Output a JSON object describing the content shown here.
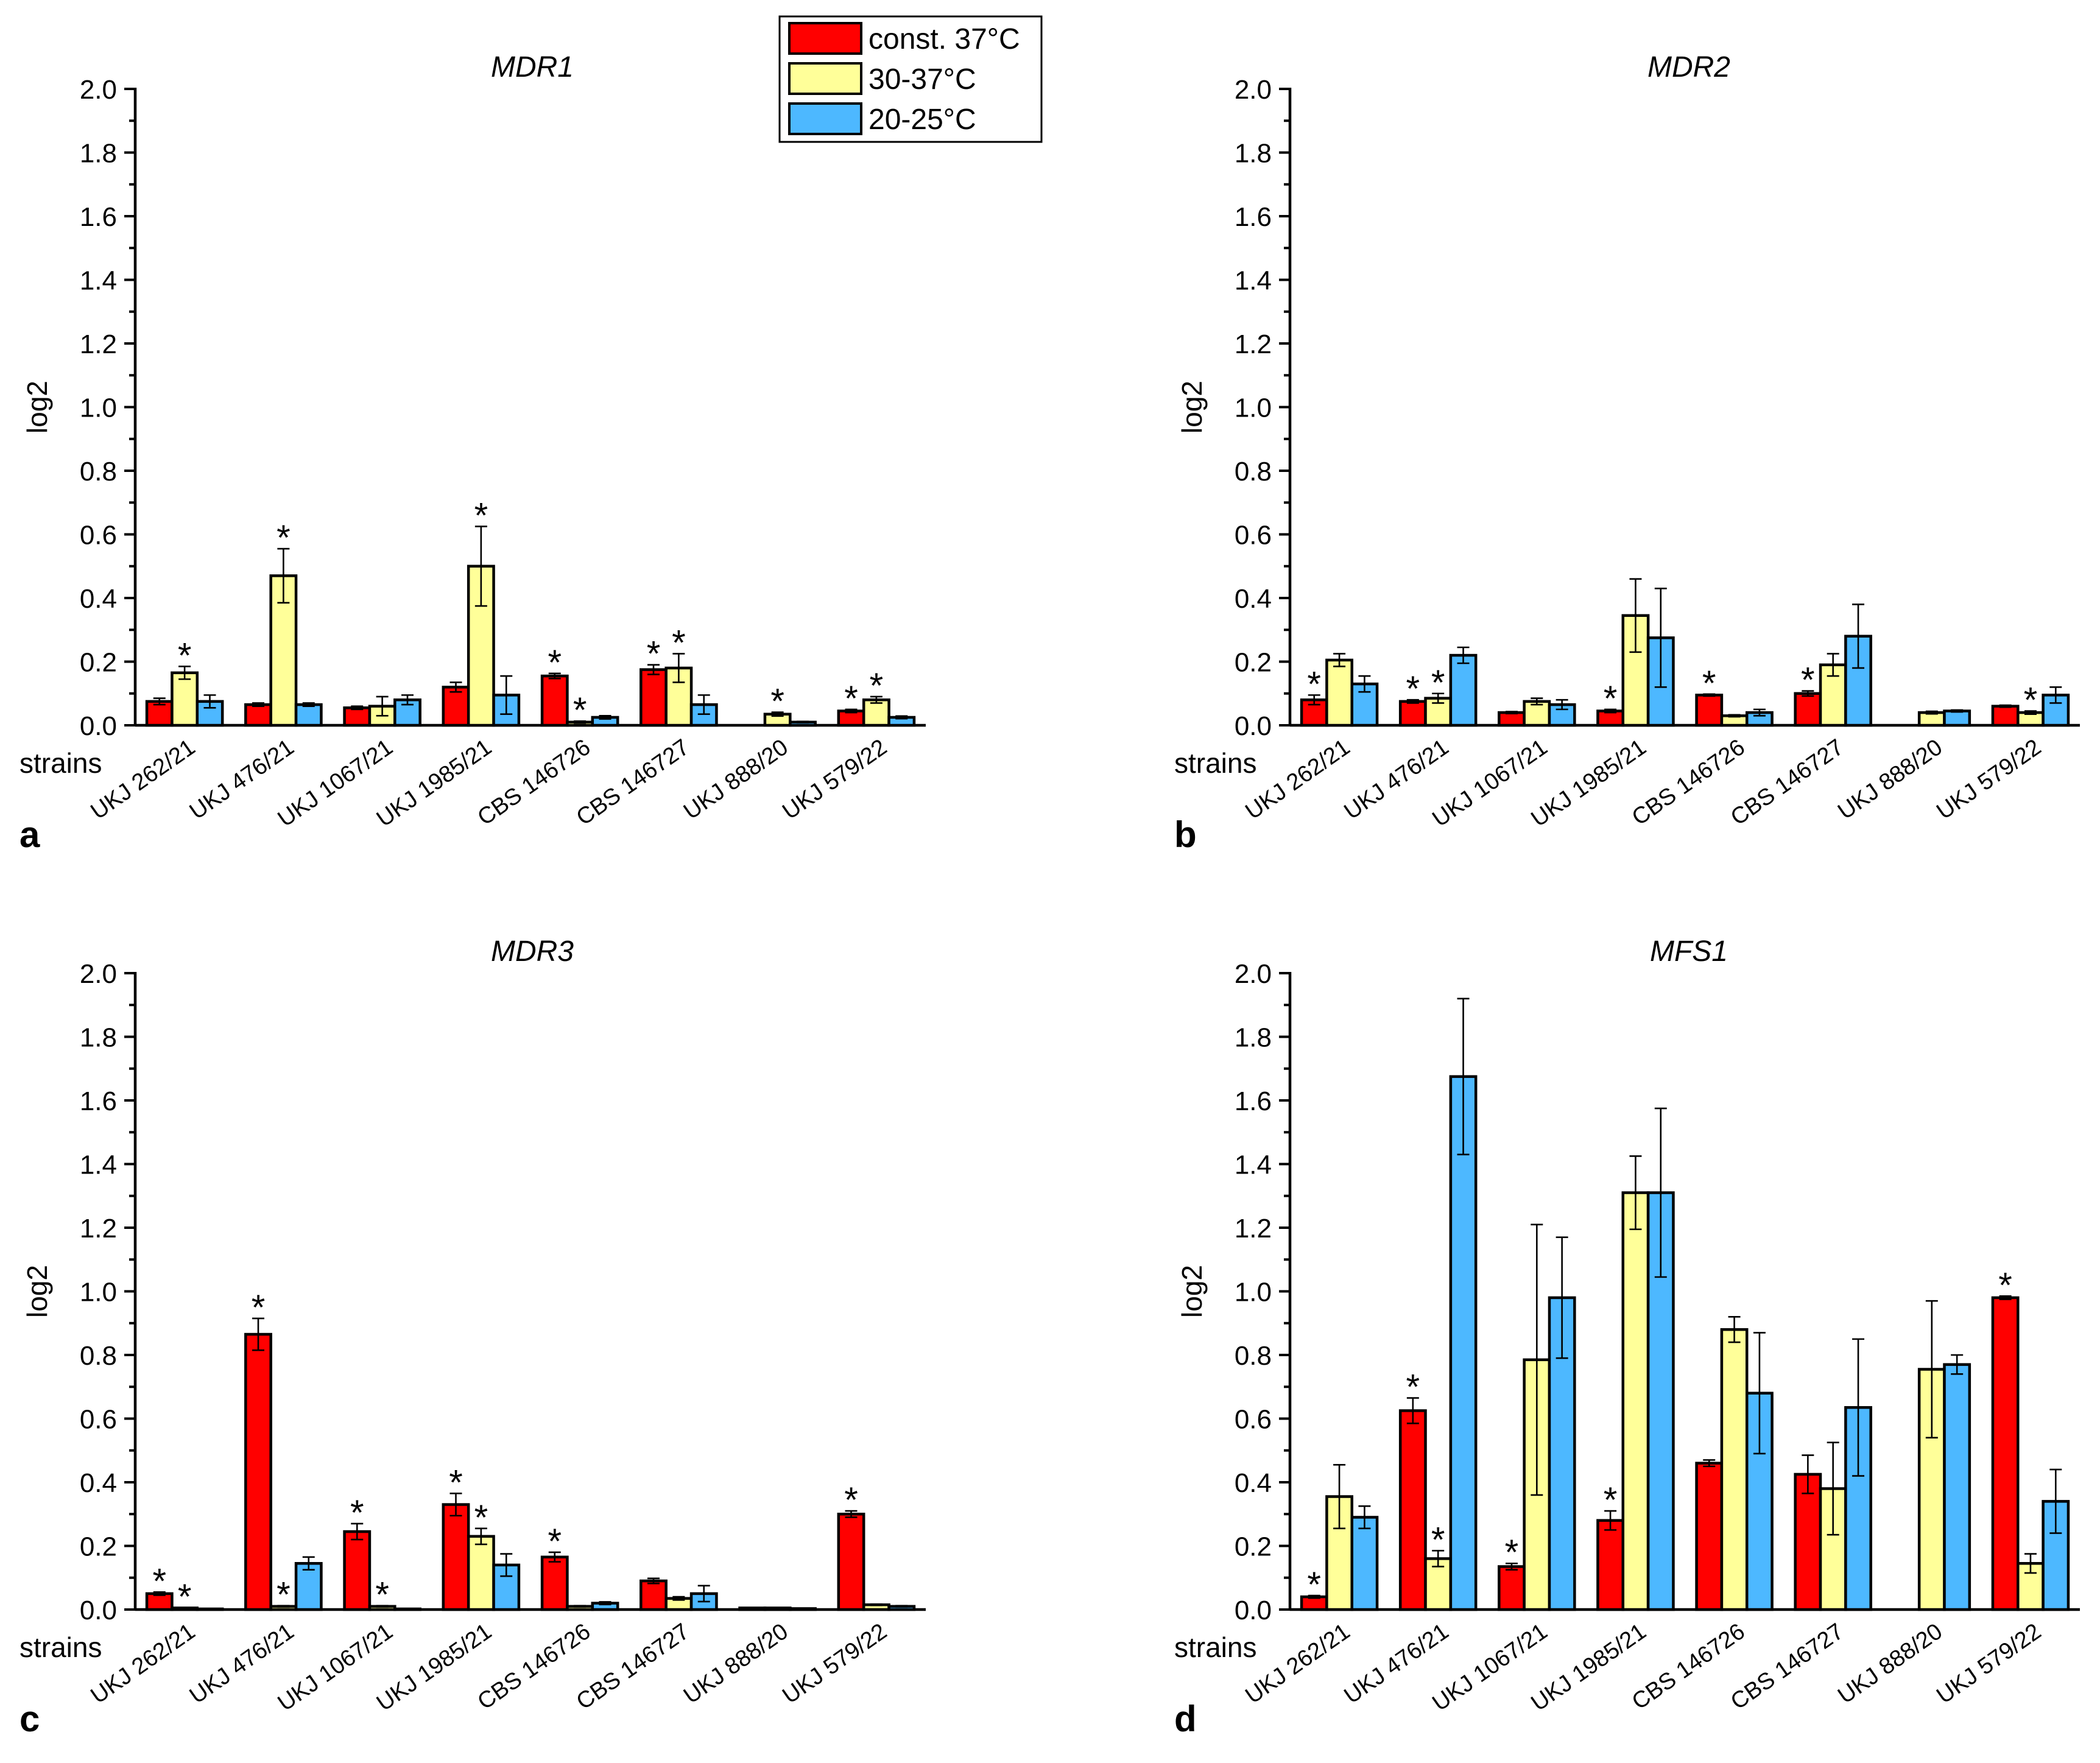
{
  "legend": {
    "items": [
      {
        "label": "const. 37°C",
        "color": "#ff0000"
      },
      {
        "label": "30-37°C",
        "color": "#ffff99"
      },
      {
        "label": "20-25°C",
        "color": "#4db8ff"
      }
    ]
  },
  "chart_data": [
    {
      "type": "bar",
      "panel": "a",
      "title": "MDR1",
      "xlabel": "strains",
      "ylabel": "log2",
      "ylim": [
        0,
        2.0
      ],
      "yticks": [
        "0.0",
        "0.2",
        "0.4",
        "0.6",
        "0.8",
        "1.0",
        "1.2",
        "1.4",
        "1.6",
        "1.8",
        "2.0"
      ],
      "categories": [
        "UKJ 262/21",
        "UKJ 476/21",
        "UKJ 1067/21",
        "UKJ 1985/21",
        "CBS 146726",
        "CBS 146727",
        "UKJ 888/20",
        "UKJ 579/22"
      ],
      "series": [
        {
          "name": "const. 37°C",
          "values": [
            0.075,
            0.065,
            0.055,
            0.12,
            0.155,
            0.175,
            0.0,
            0.045
          ],
          "errors": [
            0.01,
            0.005,
            0.005,
            0.015,
            0.008,
            0.015,
            0.0,
            0.005
          ],
          "significant": [
            false,
            false,
            false,
            false,
            true,
            true,
            false,
            true
          ]
        },
        {
          "name": "30-37°C",
          "values": [
            0.165,
            0.47,
            0.06,
            0.5,
            0.01,
            0.18,
            0.035,
            0.08
          ],
          "errors": [
            0.02,
            0.085,
            0.03,
            0.125,
            0.003,
            0.045,
            0.006,
            0.01
          ],
          "significant": [
            true,
            true,
            false,
            true,
            true,
            true,
            true,
            true
          ]
        },
        {
          "name": "20-25°C",
          "values": [
            0.075,
            0.065,
            0.08,
            0.095,
            0.025,
            0.065,
            0.01,
            0.025
          ],
          "errors": [
            0.02,
            0.005,
            0.015,
            0.06,
            0.005,
            0.03,
            0.002,
            0.004
          ],
          "significant": [
            false,
            false,
            false,
            false,
            false,
            false,
            false,
            false
          ]
        }
      ]
    },
    {
      "type": "bar",
      "panel": "b",
      "title": "MDR2",
      "xlabel": "strains",
      "ylabel": "log2",
      "ylim": [
        0,
        2.0
      ],
      "yticks": [
        "0.0",
        "0.2",
        "0.4",
        "0.6",
        "0.8",
        "1.0",
        "1.2",
        "1.4",
        "1.6",
        "1.8",
        "2.0"
      ],
      "categories": [
        "UKJ 262/21",
        "UKJ 476/21",
        "UKJ 1067/21",
        "UKJ 1985/21",
        "CBS 146726",
        "CBS 146727",
        "UKJ 888/20",
        "UKJ 579/22"
      ],
      "series": [
        {
          "name": "const. 37°C",
          "values": [
            0.08,
            0.075,
            0.04,
            0.045,
            0.095,
            0.1,
            0.0,
            0.06
          ],
          "errors": [
            0.015,
            0.005,
            0.003,
            0.005,
            0.003,
            0.008,
            0.0,
            0.003
          ],
          "significant": [
            true,
            true,
            false,
            true,
            true,
            true,
            false,
            false
          ]
        },
        {
          "name": "30-37°C",
          "values": [
            0.205,
            0.085,
            0.075,
            0.345,
            0.03,
            0.19,
            0.04,
            0.04
          ],
          "errors": [
            0.02,
            0.015,
            0.01,
            0.115,
            0.003,
            0.035,
            0.004,
            0.005
          ],
          "significant": [
            false,
            true,
            false,
            false,
            false,
            false,
            false,
            true
          ]
        },
        {
          "name": "20-25°C",
          "values": [
            0.13,
            0.22,
            0.065,
            0.275,
            0.04,
            0.28,
            0.045,
            0.095
          ],
          "errors": [
            0.025,
            0.025,
            0.015,
            0.155,
            0.01,
            0.1,
            0.003,
            0.025
          ],
          "significant": [
            false,
            false,
            false,
            false,
            false,
            false,
            false,
            false
          ]
        }
      ]
    },
    {
      "type": "bar",
      "panel": "c",
      "title": "MDR3",
      "xlabel": "strains",
      "ylabel": "log2",
      "ylim": [
        0,
        2.0
      ],
      "yticks": [
        "0.0",
        "0.2",
        "0.4",
        "0.6",
        "0.8",
        "1.0",
        "1.2",
        "1.4",
        "1.6",
        "1.8",
        "2.0"
      ],
      "categories": [
        "UKJ 262/21",
        "UKJ 476/21",
        "UKJ 1067/21",
        "UKJ 1985/21",
        "CBS 146726",
        "CBS 146727",
        "UKJ 888/20",
        "UKJ 579/22"
      ],
      "series": [
        {
          "name": "const. 37°C",
          "values": [
            0.05,
            0.865,
            0.245,
            0.33,
            0.165,
            0.09,
            0.005,
            0.3
          ],
          "errors": [
            0.005,
            0.05,
            0.025,
            0.035,
            0.015,
            0.008,
            0.001,
            0.01
          ],
          "significant": [
            true,
            true,
            true,
            true,
            true,
            false,
            false,
            true
          ]
        },
        {
          "name": "30-37°C",
          "values": [
            0.005,
            0.01,
            0.01,
            0.23,
            0.01,
            0.035,
            0.005,
            0.015
          ],
          "errors": [
            0.001,
            0.002,
            0.002,
            0.025,
            0.002,
            0.005,
            0.001,
            0.002
          ],
          "significant": [
            true,
            true,
            true,
            true,
            false,
            false,
            false,
            false
          ]
        },
        {
          "name": "20-25°C",
          "values": [
            0.002,
            0.145,
            0.002,
            0.14,
            0.02,
            0.05,
            0.003,
            0.01
          ],
          "errors": [
            0.0005,
            0.02,
            0.0005,
            0.035,
            0.004,
            0.025,
            0.001,
            0.002
          ],
          "significant": [
            false,
            false,
            false,
            false,
            false,
            false,
            false,
            false
          ]
        }
      ]
    },
    {
      "type": "bar",
      "panel": "d",
      "title": "MFS1",
      "xlabel": "strains",
      "ylabel": "log2",
      "ylim": [
        0,
        2.0
      ],
      "yticks": [
        "0.0",
        "0.2",
        "0.4",
        "0.6",
        "0.8",
        "1.0",
        "1.2",
        "1.4",
        "1.6",
        "1.8",
        "2.0"
      ],
      "categories": [
        "UKJ 262/21",
        "UKJ 476/21",
        "UKJ 1067/21",
        "UKJ 1985/21",
        "CBS 146726",
        "CBS 146727",
        "UKJ 888/20",
        "UKJ 579/22"
      ],
      "series": [
        {
          "name": "const. 37°C",
          "values": [
            0.04,
            0.625,
            0.135,
            0.28,
            0.46,
            0.425,
            0.0,
            0.98
          ],
          "errors": [
            0.004,
            0.04,
            0.01,
            0.03,
            0.01,
            0.06,
            0.0,
            0.005
          ],
          "significant": [
            true,
            true,
            true,
            true,
            false,
            false,
            false,
            true
          ]
        },
        {
          "name": "30-37°C",
          "values": [
            0.355,
            0.16,
            0.785,
            1.31,
            0.88,
            0.38,
            0.755,
            0.145
          ],
          "errors": [
            0.1,
            0.025,
            0.425,
            0.115,
            0.04,
            0.145,
            0.215,
            0.03
          ],
          "significant": [
            false,
            true,
            false,
            false,
            false,
            false,
            false,
            false
          ]
        },
        {
          "name": "20-25°C",
          "values": [
            0.29,
            1.675,
            0.98,
            1.31,
            0.68,
            0.635,
            0.77,
            0.34
          ],
          "errors": [
            0.035,
            0.245,
            0.19,
            0.265,
            0.19,
            0.215,
            0.03,
            0.1
          ],
          "significant": [
            false,
            false,
            false,
            false,
            false,
            false,
            false,
            false
          ]
        }
      ]
    }
  ]
}
